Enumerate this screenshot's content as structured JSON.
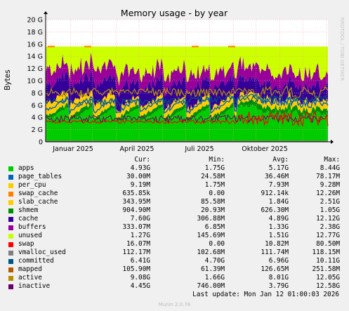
{
  "chart_data": {
    "type": "area",
    "title": "Memory usage - by year",
    "ylabel": "Bytes",
    "side_label": "RRDTOOL / TOBI OETIKER",
    "ylim": [
      0,
      20
    ],
    "y_unit": "G",
    "y_ticks": [
      "0",
      "2 G",
      "4 G",
      "6 G",
      "8 G",
      "10 G",
      "12 G",
      "14 G",
      "16 G",
      "18 G",
      "20 G"
    ],
    "x_ticks": [
      "Januar 2025",
      "April 2025",
      "Juli 2025",
      "Oktober 2025"
    ],
    "columns": [
      "Cur:",
      "Min:",
      "Avg:",
      "Max:"
    ],
    "stack_total_G": 15.6,
    "series": [
      {
        "name": "apps",
        "color": "#00cc00",
        "cur": "4.93G",
        "min": "1.75G",
        "avg": "5.17G",
        "max": "8.44G"
      },
      {
        "name": "page_tables",
        "color": "#0066b3",
        "cur": "30.00M",
        "min": "24.58M",
        "avg": "36.46M",
        "max": "78.17M"
      },
      {
        "name": "per_cpu",
        "color": "#ffcc00",
        "cur": "9.19M",
        "min": "1.75M",
        "avg": "7.93M",
        "max": "9.28M"
      },
      {
        "name": "swap_cache",
        "color": "#ff8000",
        "cur": "635.85k",
        "min": "0.00",
        "avg": "912.14k",
        "max": "12.26M"
      },
      {
        "name": "slab_cache",
        "color": "#ffcc00",
        "cur": "343.95M",
        "min": "85.58M",
        "avg": "1.84G",
        "max": "2.51G"
      },
      {
        "name": "shmem",
        "color": "#008f00",
        "cur": "904.90M",
        "min": "20.93M",
        "avg": "626.30M",
        "max": "1.05G"
      },
      {
        "name": "cache",
        "color": "#330099",
        "cur": "7.60G",
        "min": "306.88M",
        "avg": "4.89G",
        "max": "12.12G"
      },
      {
        "name": "buffers",
        "color": "#990099",
        "cur": "333.07M",
        "min": "6.85M",
        "avg": "1.33G",
        "max": "2.38G"
      },
      {
        "name": "unused",
        "color": "#ccff00",
        "cur": "1.27G",
        "min": "145.69M",
        "avg": "1.51G",
        "max": "12.77G"
      },
      {
        "name": "swap",
        "color": "#ff0000",
        "cur": "16.07M",
        "min": "0.00",
        "avg": "10.82M",
        "max": "80.50M"
      },
      {
        "name": "vmalloc_used",
        "color": "#808080",
        "cur": "112.17M",
        "min": "102.68M",
        "avg": "111.74M",
        "max": "118.15M"
      },
      {
        "name": "committed",
        "color": "#005580",
        "cur": "6.41G",
        "min": "4.70G",
        "avg": "6.96G",
        "max": "10.11G"
      },
      {
        "name": "mapped",
        "color": "#b35a00",
        "cur": "105.90M",
        "min": "61.39M",
        "avg": "126.65M",
        "max": "251.58M"
      },
      {
        "name": "active",
        "color": "#b38f00",
        "cur": "9.08G",
        "min": "1.66G",
        "avg": "8.01G",
        "max": "12.05G"
      },
      {
        "name": "inactive",
        "color": "#6b006b",
        "cur": "4.45G",
        "min": "746.00M",
        "avg": "3.79G",
        "max": "12.58G"
      }
    ]
  },
  "footer": {
    "last_update": "Last update: Mon Jan 12 01:00:03 2026",
    "version": "Munin 2.0.76"
  }
}
